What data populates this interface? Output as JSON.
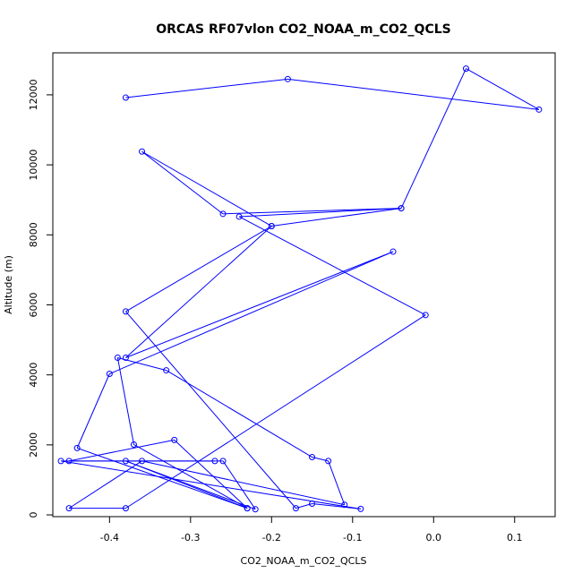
{
  "chart_data": {
    "type": "line",
    "title": "ORCAS RF07vlon CO2_NOAA_m_CO2_QCLS",
    "xlabel": "CO2_NOAA_m_CO2_QCLS",
    "ylabel": "Altitude (m)",
    "xlim": [
      -0.47,
      0.15
    ],
    "ylim": [
      -50,
      13200
    ],
    "xticks": [
      -0.4,
      -0.3,
      -0.2,
      -0.1,
      0.0,
      0.1
    ],
    "xtick_labels": [
      "-0.4",
      "-0.3",
      "-0.2",
      "-0.1",
      "0.0",
      "0.1"
    ],
    "yticks": [
      0,
      2000,
      4000,
      6000,
      8000,
      10000,
      12000
    ],
    "ytick_labels": [
      "0",
      "2000",
      "4000",
      "6000",
      "8000",
      "10000",
      "12000"
    ],
    "grid": false,
    "series": [
      {
        "color": "#0000ff",
        "points": [
          [
            -0.38,
            11920
          ],
          [
            -0.18,
            12450
          ],
          [
            0.13,
            11580
          ],
          [
            0.04,
            12750
          ],
          [
            -0.04,
            8760
          ],
          [
            -0.26,
            8600
          ],
          [
            -0.36,
            10380
          ],
          [
            -0.2,
            8250
          ],
          [
            -0.38,
            4490
          ],
          [
            -0.05,
            7520
          ],
          [
            -0.4,
            4030
          ],
          [
            -0.44,
            1910
          ],
          [
            -0.23,
            190
          ],
          [
            -0.37,
            2010
          ],
          [
            -0.39,
            4490
          ],
          [
            -0.33,
            4130
          ],
          [
            -0.15,
            1650
          ],
          [
            -0.13,
            1540
          ],
          [
            -0.11,
            290
          ],
          [
            -0.36,
            1540
          ],
          [
            -0.45,
            190
          ],
          [
            -0.38,
            190
          ],
          [
            -0.01,
            5710
          ],
          [
            -0.24,
            8520
          ],
          [
            -0.04,
            8760
          ],
          [
            -0.2,
            8250
          ],
          [
            -0.38,
            5810
          ],
          [
            -0.17,
            190
          ],
          [
            -0.15,
            320
          ],
          [
            -0.09,
            170
          ],
          [
            -0.46,
            1540
          ],
          [
            -0.26,
            1540
          ],
          [
            -0.22,
            160
          ],
          [
            -0.38,
            1540
          ],
          [
            -0.23,
            190
          ],
          [
            -0.32,
            2140
          ],
          [
            -0.45,
            1540
          ],
          [
            -0.27,
            1540
          ]
        ]
      }
    ]
  }
}
